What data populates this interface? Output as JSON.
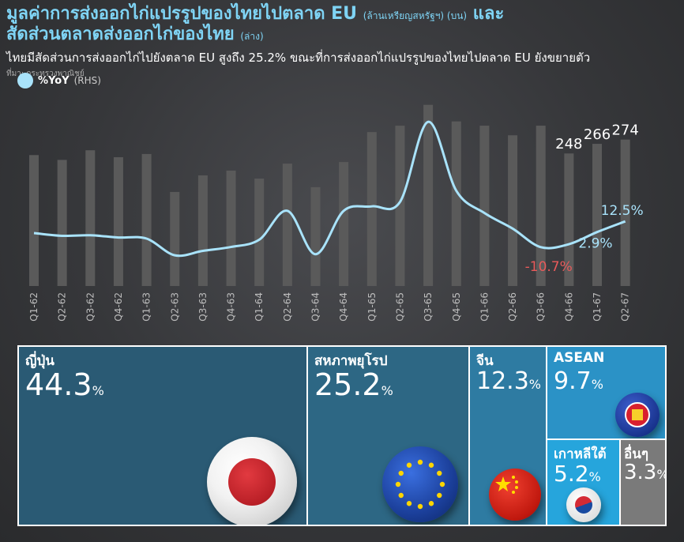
{
  "header": {
    "title_main": "มูลค่าการส่งออกไก่แปรรูปของไทยไปตลาด EU",
    "title_unit": "(ล้านเหรียญสหรัฐฯ) (บน)",
    "title_and": "และ",
    "title_line2": "สัดส่วนตลาดส่งออกไก่ของไทย",
    "title_line2_unit": "(ล่าง)",
    "subtitle": "ไทยมีสัดส่วนการส่งออกไก่ไปยังตลาด EU สูงถึง 25.2% ขณะที่การส่งออกไก่แปรรูปของไทยไปตลาด EU ยังขยายตัว",
    "source": "ที่มา: กระทรวงพาณิชย์"
  },
  "legend": {
    "series": "%YoY",
    "axis": "(RHS)"
  },
  "colors": {
    "bar": "#5a5a5a",
    "line": "#a9e3fb",
    "negative": "#e85a5a",
    "accent": "#7fd4f5"
  },
  "chart_data": {
    "type": "bar",
    "categories": [
      "Q1-62",
      "Q2-62",
      "Q3-62",
      "Q4-62",
      "Q1-63",
      "Q2-63",
      "Q3-63",
      "Q4-63",
      "Q1-64",
      "Q2-64",
      "Q3-64",
      "Q4-64",
      "Q1-65",
      "Q2-65",
      "Q3-65",
      "Q4-65",
      "Q1-66",
      "Q2-66",
      "Q3-66",
      "Q4-66",
      "Q1-67",
      "Q2-67"
    ],
    "series": [
      {
        "type": "bar",
        "axis": "left",
        "values": [
          245,
          236,
          254,
          241,
          247,
          176,
          207,
          216,
          201,
          229,
          185,
          232,
          288,
          300,
          339,
          308,
          300,
          282,
          300,
          248,
          266,
          274
        ]
      },
      {
        "name": "%YoY",
        "type": "line",
        "axis": "right",
        "values": [
          2.0,
          -0.5,
          0.0,
          -2.0,
          -3.0,
          -18.0,
          -14.0,
          -10.5,
          -4.0,
          22.0,
          -17.0,
          22.0,
          26.0,
          30.0,
          102.0,
          40.0,
          20.0,
          6.0,
          -10.7,
          -8.0,
          2.9,
          12.5
        ]
      }
    ],
    "bar_labels": [
      {
        "index": 19,
        "text": "248"
      },
      {
        "index": 20,
        "text": "266"
      },
      {
        "index": 21,
        "text": "274"
      }
    ],
    "line_labels": [
      {
        "index": 18,
        "text": "-10.7%",
        "negative": true
      },
      {
        "index": 20,
        "text": "2.9%",
        "negative": false
      },
      {
        "index": 21,
        "text": "12.5%",
        "negative": false
      }
    ],
    "ylim_left": [
      0,
      340
    ],
    "ylim_right": [
      -30,
      105
    ]
  },
  "treemap": [
    {
      "name": "ญี่ปุ่น",
      "value": "44.3",
      "pct": "%",
      "color": "#2a5a74",
      "flag": "japan-flag-icon"
    },
    {
      "name": "สหภาพยุโรป",
      "value": "25.2",
      "pct": "%",
      "color": "#2d6784",
      "flag": "eu-flag-icon"
    },
    {
      "name": "จีน",
      "value": "12.3",
      "pct": "%",
      "color": "#2e7ba2",
      "flag": "china-flag-icon"
    },
    {
      "name": "ASEAN",
      "value": "9.7",
      "pct": "%",
      "color": "#2b92c6",
      "flag": "asean-flag-icon"
    },
    {
      "name": "เกาหลีใต้",
      "value": "5.2",
      "pct": "%",
      "color": "#26a5dc",
      "flag": "korea-flag-icon"
    },
    {
      "name": "อื่นๆ",
      "value": "3.3",
      "pct": "%",
      "color": "#7a7a7a"
    }
  ]
}
